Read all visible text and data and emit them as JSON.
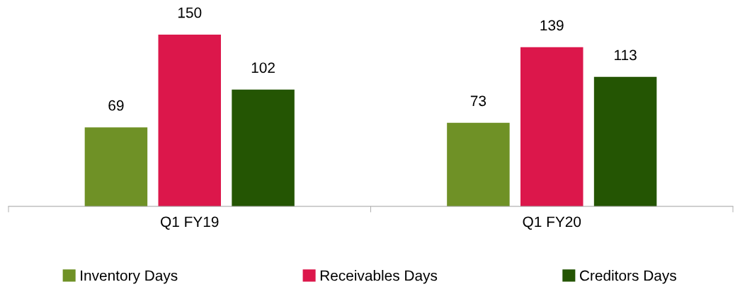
{
  "chart_data": {
    "type": "bar",
    "categories": [
      "Q1 FY19",
      "Q1 FY20"
    ],
    "series": [
      {
        "name": "Inventory Days",
        "color": "#6f9126",
        "values": [
          69,
          73
        ]
      },
      {
        "name": "Receivables Days",
        "color": "#dc174b",
        "values": [
          150,
          139
        ]
      },
      {
        "name": "Creditors Days",
        "color": "#245503",
        "values": [
          102,
          113
        ]
      }
    ],
    "data_labels": true,
    "legend": "bottom",
    "grid": false
  }
}
